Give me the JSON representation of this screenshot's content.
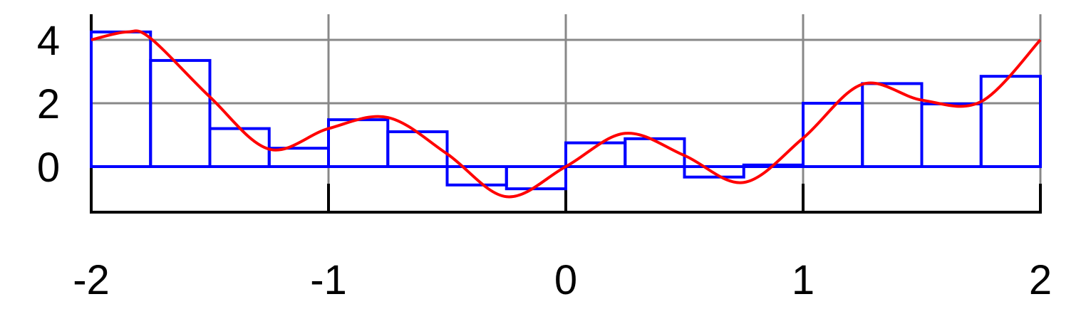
{
  "chart_data": {
    "type": "line",
    "title": "",
    "xlabel": "",
    "ylabel": "",
    "xlim": [
      -2,
      2
    ],
    "ylim": [
      -1.5,
      4.5
    ],
    "xticks": [
      {
        "value": -2,
        "label": "-2"
      },
      {
        "value": -1,
        "label": "-1"
      },
      {
        "value": 0,
        "label": "0"
      },
      {
        "value": 1,
        "label": "1"
      },
      {
        "value": 2,
        "label": "2"
      }
    ],
    "yticks": [
      {
        "value": 0,
        "label": "0"
      },
      {
        "value": 2,
        "label": "2"
      },
      {
        "value": 4,
        "label": "4"
      }
    ],
    "grid": true,
    "series": [
      {
        "kind": "step",
        "color": "#0000ff",
        "bin_width": 0.25,
        "x_start": -2,
        "values": [
          4.25,
          3.35,
          1.2,
          0.58,
          1.48,
          1.1,
          -0.58,
          -0.7,
          0.75,
          0.88,
          -0.33,
          0.05,
          2.0,
          2.62,
          1.98,
          2.85
        ]
      },
      {
        "kind": "smooth",
        "color": "#ff0000",
        "x": [
          -2,
          -1.85,
          -1.75,
          -1.5,
          -1.25,
          -1.0,
          -0.75,
          -0.5,
          -0.25,
          0.0,
          0.25,
          0.5,
          0.75,
          1.0,
          1.25,
          1.5,
          1.75,
          2.0
        ],
        "y": [
          4.0,
          4.25,
          4.05,
          2.2,
          0.55,
          1.2,
          1.55,
          0.4,
          -0.95,
          0.0,
          1.05,
          0.35,
          -0.5,
          0.9,
          2.6,
          2.1,
          2.05,
          4.0
        ]
      }
    ]
  }
}
